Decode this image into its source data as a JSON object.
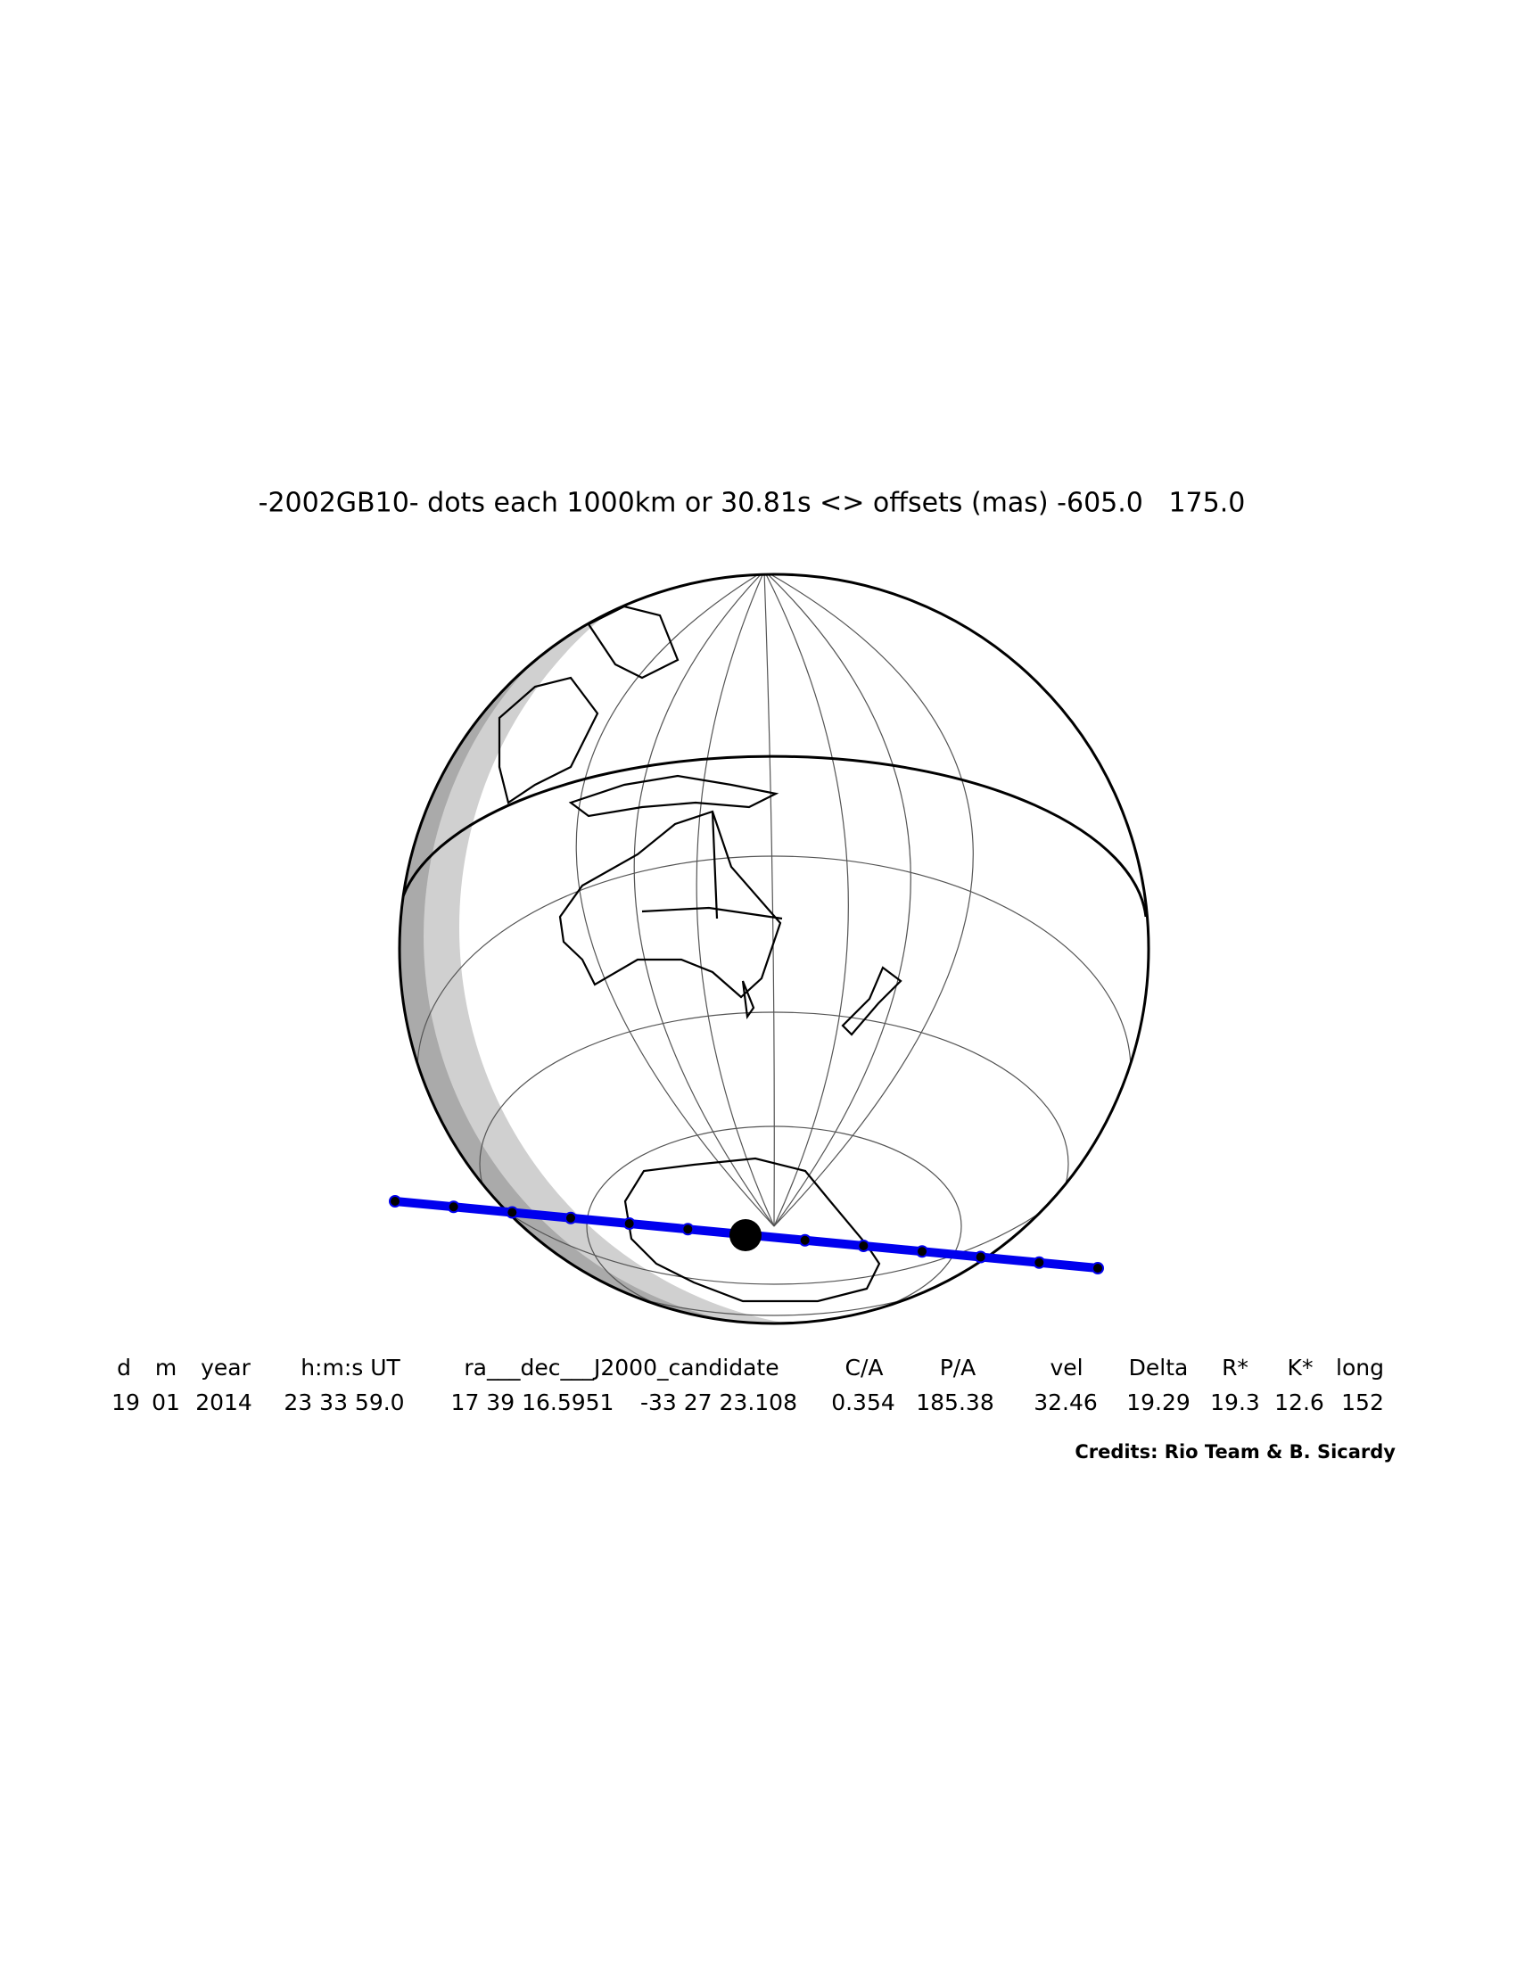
{
  "title": "-2002GB10- dots each 1000km or 30.81s <> offsets (mas) -605.0   175.0",
  "table": {
    "headers": [
      "d",
      "m",
      "year",
      "h:m:s UT",
      "ra___dec___J2000_candidate",
      "C/A",
      "P/A",
      "vel",
      "Delta",
      "R*",
      "K*",
      "long"
    ],
    "values": [
      "19",
      "01",
      "2014",
      "23 33 59.0",
      "17 39 16.5951",
      "-33 27 23.108",
      "0.354",
      "185.38",
      "32.46",
      "19.29",
      "19.3",
      "12.6",
      "152"
    ]
  },
  "credits": "Credits: Rio Team & B. Sicardy"
}
